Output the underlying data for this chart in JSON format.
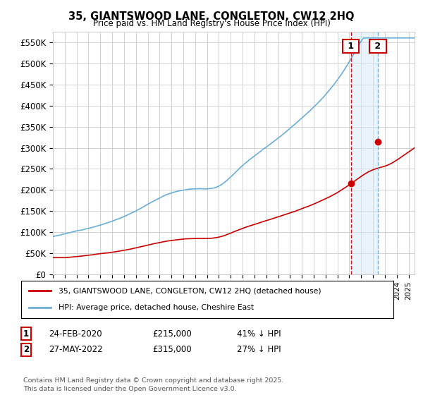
{
  "title": "35, GIANTSWOOD LANE, CONGLETON, CW12 2HQ",
  "subtitle": "Price paid vs. HM Land Registry's House Price Index (HPI)",
  "ylabel_ticks": [
    "£0",
    "£50K",
    "£100K",
    "£150K",
    "£200K",
    "£250K",
    "£300K",
    "£350K",
    "£400K",
    "£450K",
    "£500K",
    "£550K"
  ],
  "ytick_values": [
    0,
    50000,
    100000,
    150000,
    200000,
    250000,
    300000,
    350000,
    400000,
    450000,
    500000,
    550000
  ],
  "ylim": [
    0,
    575000
  ],
  "hpi_color": "#6baed6",
  "price_color": "#cc0000",
  "sale1_x": 2020.12,
  "sale2_x": 2022.41,
  "marker1_price": 215000,
  "marker2_price": 315000,
  "legend_label1": "35, GIANTSWOOD LANE, CONGLETON, CW12 2HQ (detached house)",
  "legend_label2": "HPI: Average price, detached house, Cheshire East",
  "annotation1_date": "24-FEB-2020",
  "annotation1_price": "£215,000",
  "annotation1_pct": "41% ↓ HPI",
  "annotation2_date": "27-MAY-2022",
  "annotation2_price": "£315,000",
  "annotation2_pct": "27% ↓ HPI",
  "footnote": "Contains HM Land Registry data © Crown copyright and database right 2025.\nThis data is licensed under the Open Government Licence v3.0.",
  "background_color": "#ffffff",
  "grid_color": "#cccccc",
  "shade_color": "#d6e9f7"
}
